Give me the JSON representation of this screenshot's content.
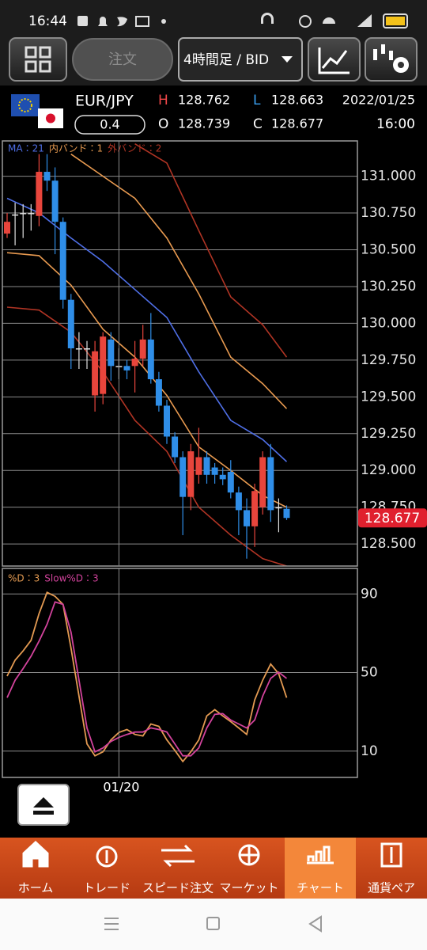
{
  "status_bar": {
    "time": "16:44"
  },
  "toolbar": {
    "order_button": "注文",
    "timeframe": "4時間足 / BID"
  },
  "quote": {
    "pair": "EUR/JPY",
    "spread": "0.4",
    "high_label": "H",
    "high": "128.762",
    "low_label": "L",
    "low": "128.663",
    "open_label": "O",
    "open": "128.739",
    "close_label": "C",
    "close": "128.677",
    "date": "2022/01/25",
    "time": "16:00"
  },
  "chart_data": [
    {
      "type": "candlestick",
      "ylim": [
        128.35,
        131.24
      ],
      "yticks": [
        {
          "value": 131,
          "label": "131.000"
        },
        {
          "value": 130.75,
          "label": "130.750"
        },
        {
          "value": 130.5,
          "label": "130.500"
        },
        {
          "value": 130.25,
          "label": "130.250"
        },
        {
          "value": 130,
          "label": "130.000"
        },
        {
          "value": 129.75,
          "label": "129.750"
        },
        {
          "value": 129.5,
          "label": "129.500"
        },
        {
          "value": 129.25,
          "label": "129.250"
        },
        {
          "value": 129,
          "label": "129.000"
        },
        {
          "value": 128.75,
          "label": "128.750"
        },
        {
          "value": 128.5,
          "label": "128.500"
        }
      ],
      "grid": true,
      "up_color": "#e8453c",
      "down_color": "#2f8ee8",
      "flat_color": "#e0e0e0",
      "open": [
        130.61,
        130.74,
        130.75,
        130.75,
        130.73,
        131.03,
        130.97,
        130.69,
        130.16,
        129.83,
        129.83,
        129.51,
        129.52,
        129.89,
        129.71,
        129.71,
        129.71,
        129.76,
        129.89,
        129.62,
        129.44,
        129.23,
        129.09,
        128.82,
        128.97,
        129.09,
        129.02,
        128.97,
        128.99,
        128.85,
        128.73,
        128.62,
        128.75,
        129.09,
        128.75,
        128.739
      ],
      "high": [
        130.75,
        130.82,
        130.81,
        130.81,
        131.15,
        131.15,
        131.06,
        130.72,
        130.2,
        129.94,
        129.88,
        129.88,
        129.94,
        129.94,
        129.83,
        129.75,
        129.88,
        129.99,
        130.07,
        129.67,
        129.48,
        129.26,
        129.13,
        129.18,
        129.29,
        129.13,
        129.05,
        129.02,
        129.07,
        128.89,
        128.81,
        128.91,
        129.13,
        129.18,
        128.81,
        128.762
      ],
      "low": [
        130.58,
        130.53,
        130.58,
        130.63,
        130.66,
        130.9,
        130.47,
        130.1,
        129.69,
        129.69,
        129.69,
        129.4,
        129.45,
        129.61,
        129.62,
        129.62,
        129.53,
        129.71,
        129.59,
        129.4,
        129.18,
        129.05,
        128.56,
        128.73,
        128.91,
        128.91,
        128.91,
        128.9,
        128.81,
        128.56,
        128.4,
        128.48,
        128.7,
        128.65,
        128.58,
        128.663
      ],
      "close": [
        130.69,
        130.74,
        130.75,
        130.75,
        131.03,
        130.97,
        130.69,
        130.16,
        129.83,
        129.83,
        129.83,
        129.81,
        129.91,
        129.71,
        129.71,
        129.68,
        129.76,
        129.89,
        129.62,
        129.44,
        129.23,
        129.09,
        128.82,
        129.13,
        129.09,
        128.97,
        128.97,
        128.94,
        128.85,
        128.73,
        128.62,
        128.86,
        129.09,
        128.73,
        128.75,
        128.677
      ],
      "overlays": [
        {
          "name": "MA：21",
          "color": "#4f6fe6",
          "x": [
            0,
            4,
            8,
            12,
            16,
            20,
            24,
            28,
            32,
            35
          ],
          "values": [
            130.85,
            130.75,
            130.58,
            130.42,
            130.23,
            130.04,
            129.67,
            129.34,
            129.21,
            129.06
          ]
        },
        {
          "name": "内バンド：1",
          "color": "#e89a50",
          "x": [
            0,
            4,
            8,
            12,
            16,
            20,
            24,
            28,
            32,
            35
          ],
          "upper": [
            null,
            null,
            131.15,
            131.0,
            130.85,
            130.58,
            130.2,
            129.77,
            129.59,
            129.42
          ],
          "lower": [
            130.48,
            130.46,
            130.26,
            129.96,
            129.77,
            129.51,
            129.16,
            129.0,
            128.83,
            128.75
          ]
        },
        {
          "name": "外バンド：2",
          "color": "#b03424",
          "x": [
            0,
            4,
            8,
            12,
            16,
            20,
            24,
            28,
            32,
            35
          ],
          "upper": [
            null,
            null,
            null,
            null,
            131.22,
            131.09,
            130.63,
            130.18,
            129.99,
            129.77
          ],
          "lower": [
            130.11,
            130.09,
            129.94,
            129.67,
            129.34,
            129.13,
            128.75,
            128.56,
            128.4,
            128.35
          ]
        }
      ],
      "last_price": 128.677,
      "last_price_color": "#e0202e"
    },
    {
      "type": "line",
      "categories": [
        null,
        null,
        null,
        null,
        null,
        null,
        null,
        null,
        null,
        null,
        null,
        null,
        null,
        null,
        "01/20",
        null,
        null,
        null,
        null,
        null,
        null,
        null,
        null,
        null,
        null,
        null,
        null,
        null,
        null,
        null,
        null,
        null,
        null,
        null,
        null,
        null
      ],
      "ylim": [
        -3.4,
        103
      ],
      "yticks": [
        90,
        50,
        10
      ],
      "grid": true,
      "series": [
        {
          "name": "%D：3",
          "color": "#e39a52",
          "values": [
            48.2,
            56.3,
            61.0,
            66.4,
            80.0,
            90.8,
            88.8,
            84.7,
            62.4,
            38.0,
            13.7,
            7.6,
            9.6,
            15.7,
            19.5,
            21.0,
            18.5,
            17.7,
            23.8,
            22.6,
            15.7,
            10.4,
            4.7,
            9.6,
            15.7,
            27.9,
            31.1,
            27.9,
            25.0,
            21.8,
            18.5,
            36.0,
            46.1,
            54.3,
            49.4,
            37.2
          ]
        },
        {
          "name": "Slow%D：3",
          "color": "#d2439c",
          "values": [
            37.2,
            46.1,
            52.0,
            58.3,
            66.0,
            74.6,
            85.9,
            84.7,
            70.5,
            46.1,
            21.8,
            9.6,
            11.6,
            14.9,
            17.0,
            18.5,
            19.7,
            19.7,
            21.8,
            21.0,
            19.7,
            13.7,
            7.6,
            7.6,
            11.6,
            21.8,
            28.7,
            29.1,
            25.8,
            23.8,
            21.8,
            25.8,
            38.0,
            47.0,
            50.2,
            47.0
          ]
        }
      ]
    }
  ],
  "nav": {
    "selected": 4,
    "items": [
      {
        "label": "ホーム"
      },
      {
        "label": "トレード"
      },
      {
        "label": "スピード注文"
      },
      {
        "label": "マーケット"
      },
      {
        "label": "チャート"
      },
      {
        "label": "通貨ペア"
      }
    ]
  }
}
